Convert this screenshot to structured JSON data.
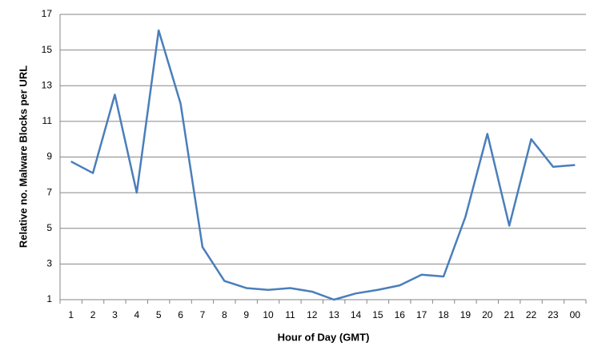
{
  "chart_data": {
    "type": "line",
    "x_label": "Hour of Day (GMT)",
    "y_label": "Relative no. Malware Blocks per URL",
    "categories": [
      "1",
      "2",
      "3",
      "4",
      "5",
      "6",
      "7",
      "8",
      "9",
      "10",
      "11",
      "12",
      "13",
      "14",
      "15",
      "16",
      "17",
      "18",
      "19",
      "20",
      "21",
      "22",
      "23",
      "00"
    ],
    "values": [
      8.75,
      8.1,
      12.5,
      7.0,
      16.1,
      12.0,
      3.95,
      2.05,
      1.65,
      1.55,
      1.65,
      1.45,
      1.0,
      1.35,
      1.55,
      1.8,
      2.4,
      2.3,
      5.65,
      10.3,
      5.15,
      10.0,
      8.45,
      8.55
    ],
    "color": "#4a7ebb",
    "ylim": [
      1,
      17
    ],
    "yticks": [
      1,
      3,
      5,
      7,
      9,
      11,
      13,
      15,
      17
    ],
    "grid": true
  }
}
